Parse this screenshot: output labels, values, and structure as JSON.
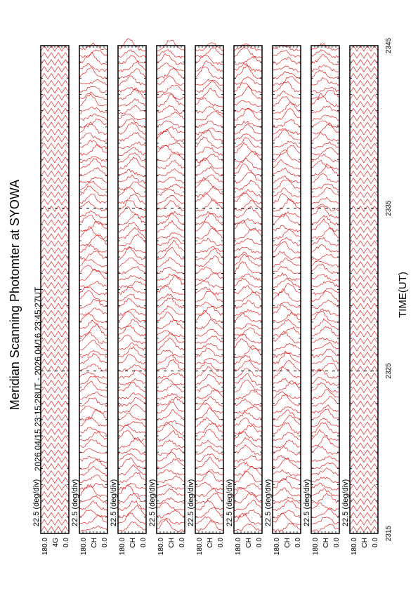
{
  "chart_data": {
    "type": "msp",
    "title": "Meridian Scanning Photomter at SYOWA",
    "subtitle": "2026 04/15 23:15:28UT - 2026 04/16 23:45:27UT",
    "x_label": "TIME(UT)",
    "xlim": [
      2315,
      2345
    ],
    "xticks": [
      2315,
      2325,
      2335,
      2345
    ],
    "color": "#e00000",
    "panels": [
      {
        "scale": "22.5 (deg/div)",
        "top": "180.0",
        "bottom": "0.0",
        "channel": "4G",
        "pattern": "zigzag"
      },
      {
        "scale": "22.5 (deg/div)",
        "top": "180.0",
        "bottom": "0.0",
        "channel": "CH",
        "pattern": "scan"
      },
      {
        "scale": "22.5 (deg/div)",
        "top": "180.0",
        "bottom": "0.0",
        "channel": "CH",
        "pattern": "scan"
      },
      {
        "scale": "22.5 (deg/div)",
        "top": "180.0",
        "bottom": "0.0",
        "channel": "CH",
        "pattern": "scan"
      },
      {
        "scale": "22.5 (deg/div)",
        "top": "180.0",
        "bottom": "0.0",
        "channel": "CH",
        "pattern": "scan"
      },
      {
        "scale": "22.5 (deg/div)",
        "top": "180.0",
        "bottom": "0.0",
        "channel": "CH",
        "pattern": "scan"
      },
      {
        "scale": "22.5 (deg/div)",
        "top": "180.0",
        "bottom": "0.0",
        "channel": "CH",
        "pattern": "scan"
      },
      {
        "scale": "22.5 (deg/div)",
        "top": "180.0",
        "bottom": "0.0",
        "channel": "CH",
        "pattern": "scan"
      },
      {
        "scale": "22.5 (deg/div)",
        "top": "180.0",
        "bottom": "0.0",
        "channel": "CH",
        "pattern": "zigzag"
      }
    ]
  }
}
